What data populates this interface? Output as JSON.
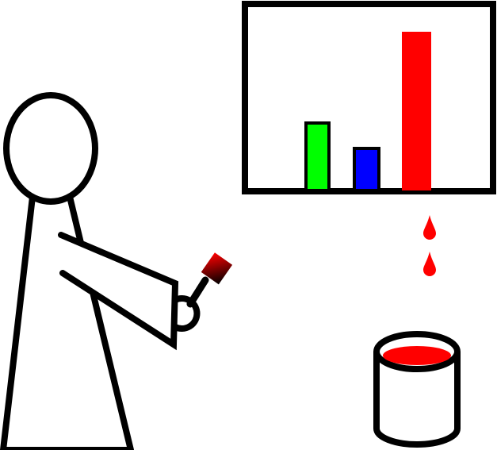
{
  "scene": {
    "description_free": true,
    "chart": {
      "bars": [
        {
          "name": "green-bar",
          "color": "#00ff00",
          "value": 85
        },
        {
          "name": "blue-bar",
          "color": "#0000ff",
          "value": 53
        },
        {
          "name": "red-bar",
          "color": "#ff0000",
          "value": 200
        }
      ],
      "red_bar_outline": false
    },
    "colors": {
      "ink": "#000000",
      "paint": "#ff0000",
      "background": "#ffffff"
    }
  }
}
